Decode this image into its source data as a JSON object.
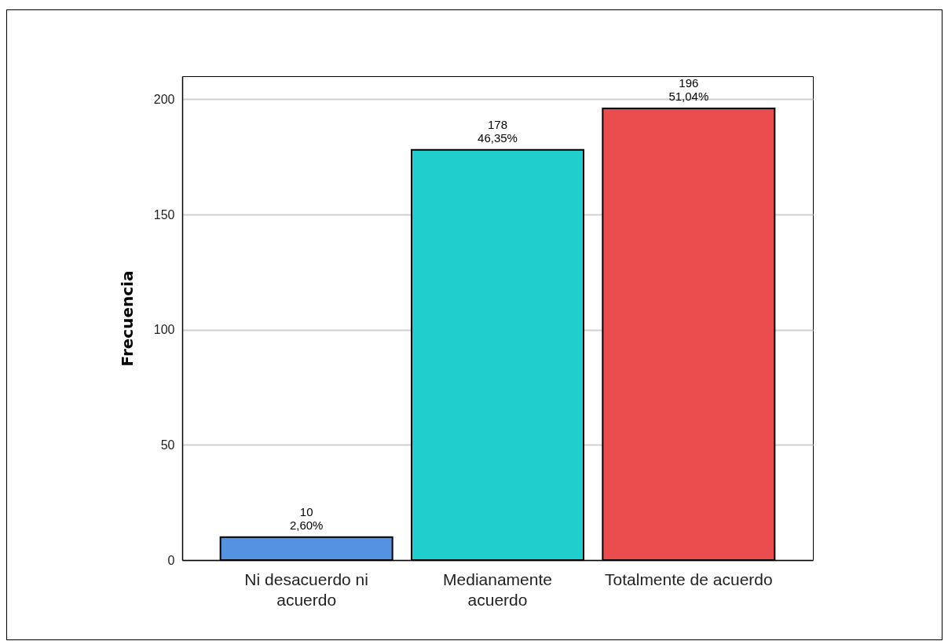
{
  "chart_data": {
    "type": "bar",
    "ylabel": "Frecuencia",
    "categories": [
      "Ni desacuerdo ni acuerdo",
      "Medianamente acuerdo",
      "Totalmente de acuerdo"
    ],
    "values": [
      10,
      178,
      196
    ],
    "colors": [
      "#5393e2",
      "#1fcecd",
      "#ea4b4c"
    ],
    "value_labels": [
      "10\n2,60%",
      "178\n46,35%",
      "196\n51,04%"
    ],
    "ylim": [
      0,
      210
    ],
    "yticks": [
      0,
      50,
      100,
      150,
      200
    ],
    "grid": "y"
  }
}
